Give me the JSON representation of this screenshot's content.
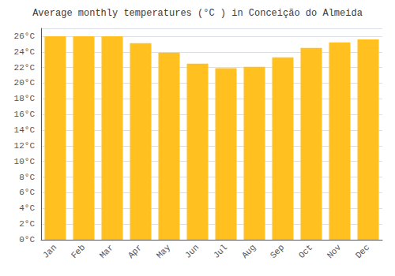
{
  "chart_data": {
    "type": "bar",
    "title": "Average monthly temperatures (°C ) in Conceição do Almeida",
    "categories": [
      "Jan",
      "Feb",
      "Mar",
      "Apr",
      "May",
      "Jun",
      "Jul",
      "Aug",
      "Sep",
      "Oct",
      "Nov",
      "Dec"
    ],
    "values": [
      26.0,
      26.0,
      26.0,
      25.1,
      23.9,
      22.5,
      21.9,
      22.1,
      23.3,
      24.5,
      25.2,
      25.6
    ],
    "color": "#FFC020",
    "ylim": [
      0,
      27
    ],
    "yticks": [
      {
        "value": 0,
        "label": "0°C"
      },
      {
        "value": 2,
        "label": "2°C"
      },
      {
        "value": 4,
        "label": "4°C"
      },
      {
        "value": 6,
        "label": "6°C"
      },
      {
        "value": 8,
        "label": "8°C"
      },
      {
        "value": 10,
        "label": "10°C"
      },
      {
        "value": 12,
        "label": "12°C"
      },
      {
        "value": 14,
        "label": "14°C"
      },
      {
        "value": 16,
        "label": "16°C"
      },
      {
        "value": 18,
        "label": "18°C"
      },
      {
        "value": 20,
        "label": "20°C"
      },
      {
        "value": 22,
        "label": "22°C"
      },
      {
        "value": 24,
        "label": "24°C"
      },
      {
        "value": 26,
        "label": "26°C"
      }
    ],
    "grid": true
  }
}
